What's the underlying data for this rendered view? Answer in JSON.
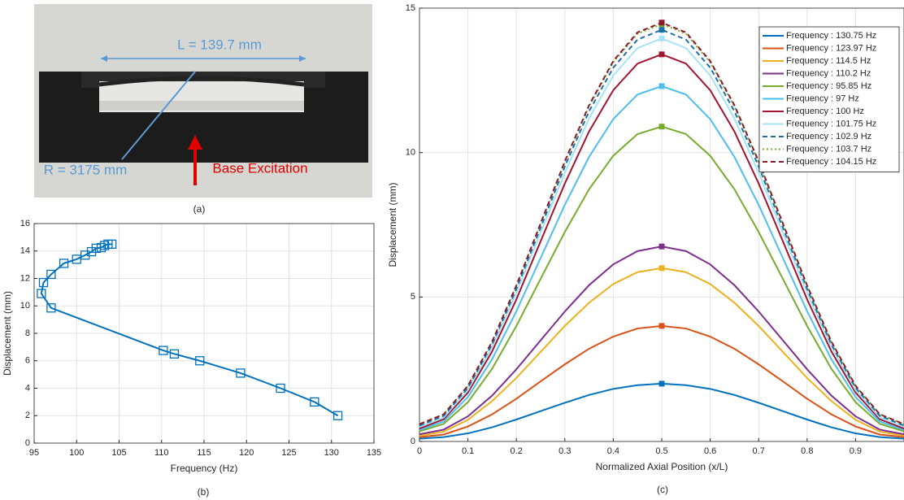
{
  "photo": {
    "length_label": "L = 139.7 mm",
    "radius_label": "R = 3175 mm",
    "excitation_label": "Base Excitation",
    "caption": "(a)"
  },
  "chart_data": [
    {
      "type": "line",
      "caption": "(b)",
      "xlabel": "Frequency (Hz)",
      "ylabel": "Displacement (mm)",
      "x": [
        130.75,
        128,
        124,
        119.3,
        114.5,
        111.5,
        110.2,
        97,
        95.85,
        96.1,
        97,
        98.5,
        100,
        101,
        101.75,
        102.3,
        102.9,
        103.3,
        103.7,
        104.15
      ],
      "xlim": [
        95,
        135
      ],
      "ylim": [
        0,
        16
      ],
      "xticks": [
        95,
        100,
        105,
        110,
        115,
        120,
        125,
        130,
        135
      ],
      "yticks": [
        0,
        2,
        4,
        6,
        8,
        10,
        12,
        14,
        16
      ],
      "grid": true,
      "series": [
        {
          "color": "#0072BD",
          "linestyle": "solid",
          "marker": "square-open",
          "values": [
            2,
            3,
            4,
            5.1,
            6,
            6.5,
            6.75,
            9.85,
            10.9,
            11.7,
            12.3,
            13.1,
            13.4,
            13.7,
            13.95,
            14.2,
            14.25,
            14.4,
            14.5,
            14.5
          ]
        }
      ]
    },
    {
      "type": "line",
      "caption": "(c)",
      "xlabel": "Normalized Axial Position (x/L)",
      "ylabel": "Displacement (mm)",
      "x": [
        0,
        0.05,
        0.1,
        0.15,
        0.2,
        0.25,
        0.3,
        0.35,
        0.4,
        0.45,
        0.5,
        0.55,
        0.6,
        0.65,
        0.7,
        0.75,
        0.8,
        0.85,
        0.9,
        0.95,
        1
      ],
      "xlim": [
        0,
        1
      ],
      "ylim": [
        0,
        15
      ],
      "xticks": [
        0,
        0.1,
        0.2,
        0.3,
        0.4,
        0.5,
        0.6,
        0.7,
        0.8,
        0.9
      ],
      "yticks": [
        0,
        5,
        10,
        15
      ],
      "grid": true,
      "legend": "upper right",
      "peak_markers": true,
      "series": [
        {
          "name": "Frequency : 130.75 Hz",
          "color": "#0072BD",
          "linestyle": "solid",
          "values": [
            0.1,
            0.15,
            0.28,
            0.49,
            0.76,
            1.05,
            1.34,
            1.61,
            1.82,
            1.95,
            2.0,
            1.95,
            1.82,
            1.61,
            1.34,
            1.05,
            0.76,
            0.49,
            0.28,
            0.15,
            0.1
          ]
        },
        {
          "name": "Frequency : 123.97 Hz",
          "color": "#D95319",
          "linestyle": "solid",
          "values": [
            0.15,
            0.24,
            0.52,
            0.94,
            1.48,
            2.08,
            2.67,
            3.21,
            3.63,
            3.91,
            4.0,
            3.91,
            3.63,
            3.21,
            2.67,
            2.08,
            1.48,
            0.94,
            0.52,
            0.24,
            0.15
          ]
        },
        {
          "name": "Frequency : 114.5 Hz",
          "color": "#EDB120",
          "linestyle": "solid",
          "values": [
            0.2,
            0.34,
            0.75,
            1.4,
            2.2,
            3.1,
            4.0,
            4.8,
            5.45,
            5.86,
            6.0,
            5.86,
            5.45,
            4.8,
            4.0,
            3.1,
            2.2,
            1.4,
            0.75,
            0.34,
            0.2
          ]
        },
        {
          "name": "Frequency : 110.2 Hz",
          "color": "#7E2F8E",
          "linestyle": "solid",
          "values": [
            0.25,
            0.41,
            0.87,
            1.59,
            2.5,
            3.5,
            4.5,
            5.41,
            6.13,
            6.59,
            6.75,
            6.59,
            6.13,
            5.41,
            4.5,
            3.5,
            2.5,
            1.59,
            0.87,
            0.41,
            0.25
          ]
        },
        {
          "name": "Frequency : 95.85 Hz",
          "color": "#77AC30",
          "linestyle": "solid",
          "values": [
            0.35,
            0.61,
            1.36,
            2.52,
            4.0,
            5.63,
            7.25,
            8.73,
            9.89,
            10.64,
            10.9,
            10.64,
            9.89,
            8.73,
            7.25,
            5.63,
            4.0,
            2.52,
            1.36,
            0.61,
            0.35
          ]
        },
        {
          "name": "Frequency : 97 Hz",
          "color": "#4DBEEE",
          "linestyle": "solid",
          "values": [
            0.4,
            0.69,
            1.54,
            2.85,
            4.51,
            6.35,
            8.19,
            9.85,
            11.16,
            12.01,
            12.3,
            12.01,
            11.16,
            9.85,
            8.19,
            6.35,
            4.51,
            2.85,
            1.54,
            0.69,
            0.4
          ]
        },
        {
          "name": "Frequency : 100 Hz",
          "color": "#A2142F",
          "linestyle": "solid",
          "values": [
            0.45,
            0.77,
            1.69,
            3.12,
            4.92,
            6.93,
            8.93,
            10.73,
            12.16,
            13.08,
            13.4,
            13.08,
            12.16,
            10.73,
            8.93,
            6.93,
            4.92,
            3.12,
            1.69,
            0.77,
            0.45
          ]
        },
        {
          "name": "Frequency : 101.75 Hz",
          "color": "#A6E3F7",
          "linestyle": "solid",
          "values": [
            0.5,
            0.83,
            1.78,
            3.27,
            5.15,
            7.23,
            9.3,
            11.18,
            12.67,
            13.62,
            13.95,
            13.62,
            12.67,
            11.18,
            9.3,
            7.23,
            5.15,
            3.27,
            1.78,
            0.83,
            0.5
          ]
        },
        {
          "name": "Frequency : 102.9 Hz",
          "color": "#1F6FA8",
          "linestyle": "dashed",
          "values": [
            0.55,
            0.89,
            1.86,
            3.37,
            5.28,
            7.4,
            9.52,
            11.43,
            12.94,
            13.91,
            14.25,
            13.91,
            12.94,
            11.43,
            9.52,
            7.4,
            5.28,
            3.37,
            1.86,
            0.89,
            0.55
          ]
        },
        {
          "name": "Frequency : 103.7 Hz",
          "color": "#77AC30",
          "linestyle": "dotted",
          "values": [
            0.6,
            0.94,
            1.92,
            3.45,
            5.39,
            7.53,
            9.66,
            11.6,
            13.13,
            14.11,
            14.45,
            14.11,
            13.13,
            11.6,
            9.66,
            7.53,
            5.39,
            3.45,
            1.92,
            0.94,
            0.6
          ]
        },
        {
          "name": "Frequency : 104.15 Hz",
          "color": "#8B1A2B",
          "linestyle": "dashed",
          "values": [
            0.6,
            0.94,
            1.93,
            3.46,
            5.4,
            7.55,
            9.7,
            11.64,
            13.17,
            14.16,
            14.5,
            14.16,
            13.17,
            11.64,
            9.7,
            7.55,
            5.4,
            3.46,
            1.93,
            0.94,
            0.6
          ]
        }
      ]
    }
  ]
}
